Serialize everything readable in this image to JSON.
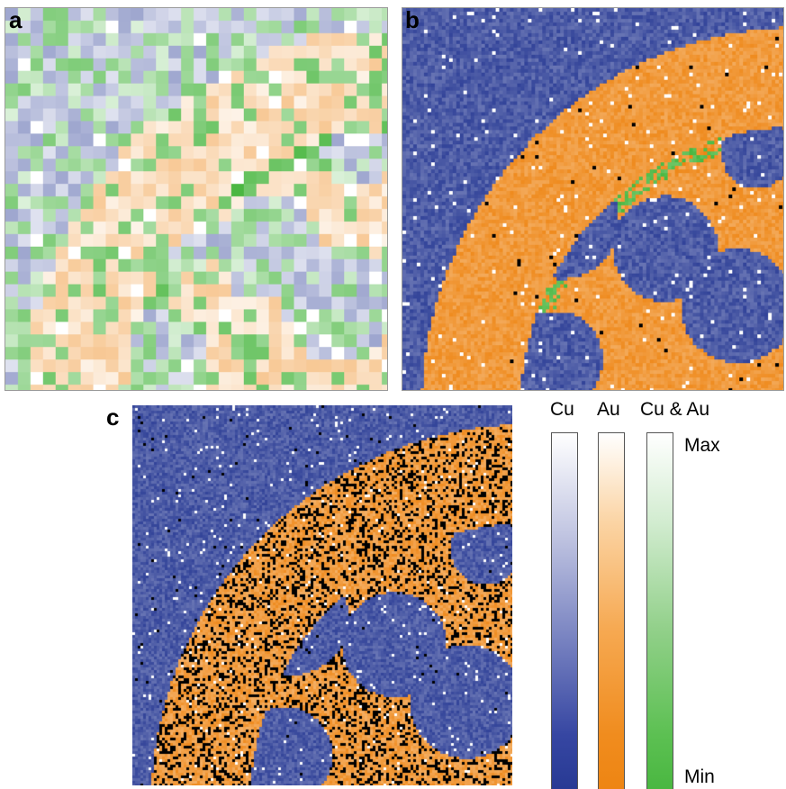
{
  "panels": {
    "a": {
      "label": "a"
    },
    "b": {
      "label": "b"
    },
    "c": {
      "label": "c"
    }
  },
  "legend": {
    "headers": [
      "Cu",
      "Au",
      "Cu & Au"
    ],
    "max_label": "Max",
    "min_label": "Min"
  },
  "colors": {
    "cu_min": "#283a94",
    "au_min": "#ee8513",
    "cuau_min": "#4ab741",
    "max": "#ffffff",
    "black_dots": "#000000"
  }
}
